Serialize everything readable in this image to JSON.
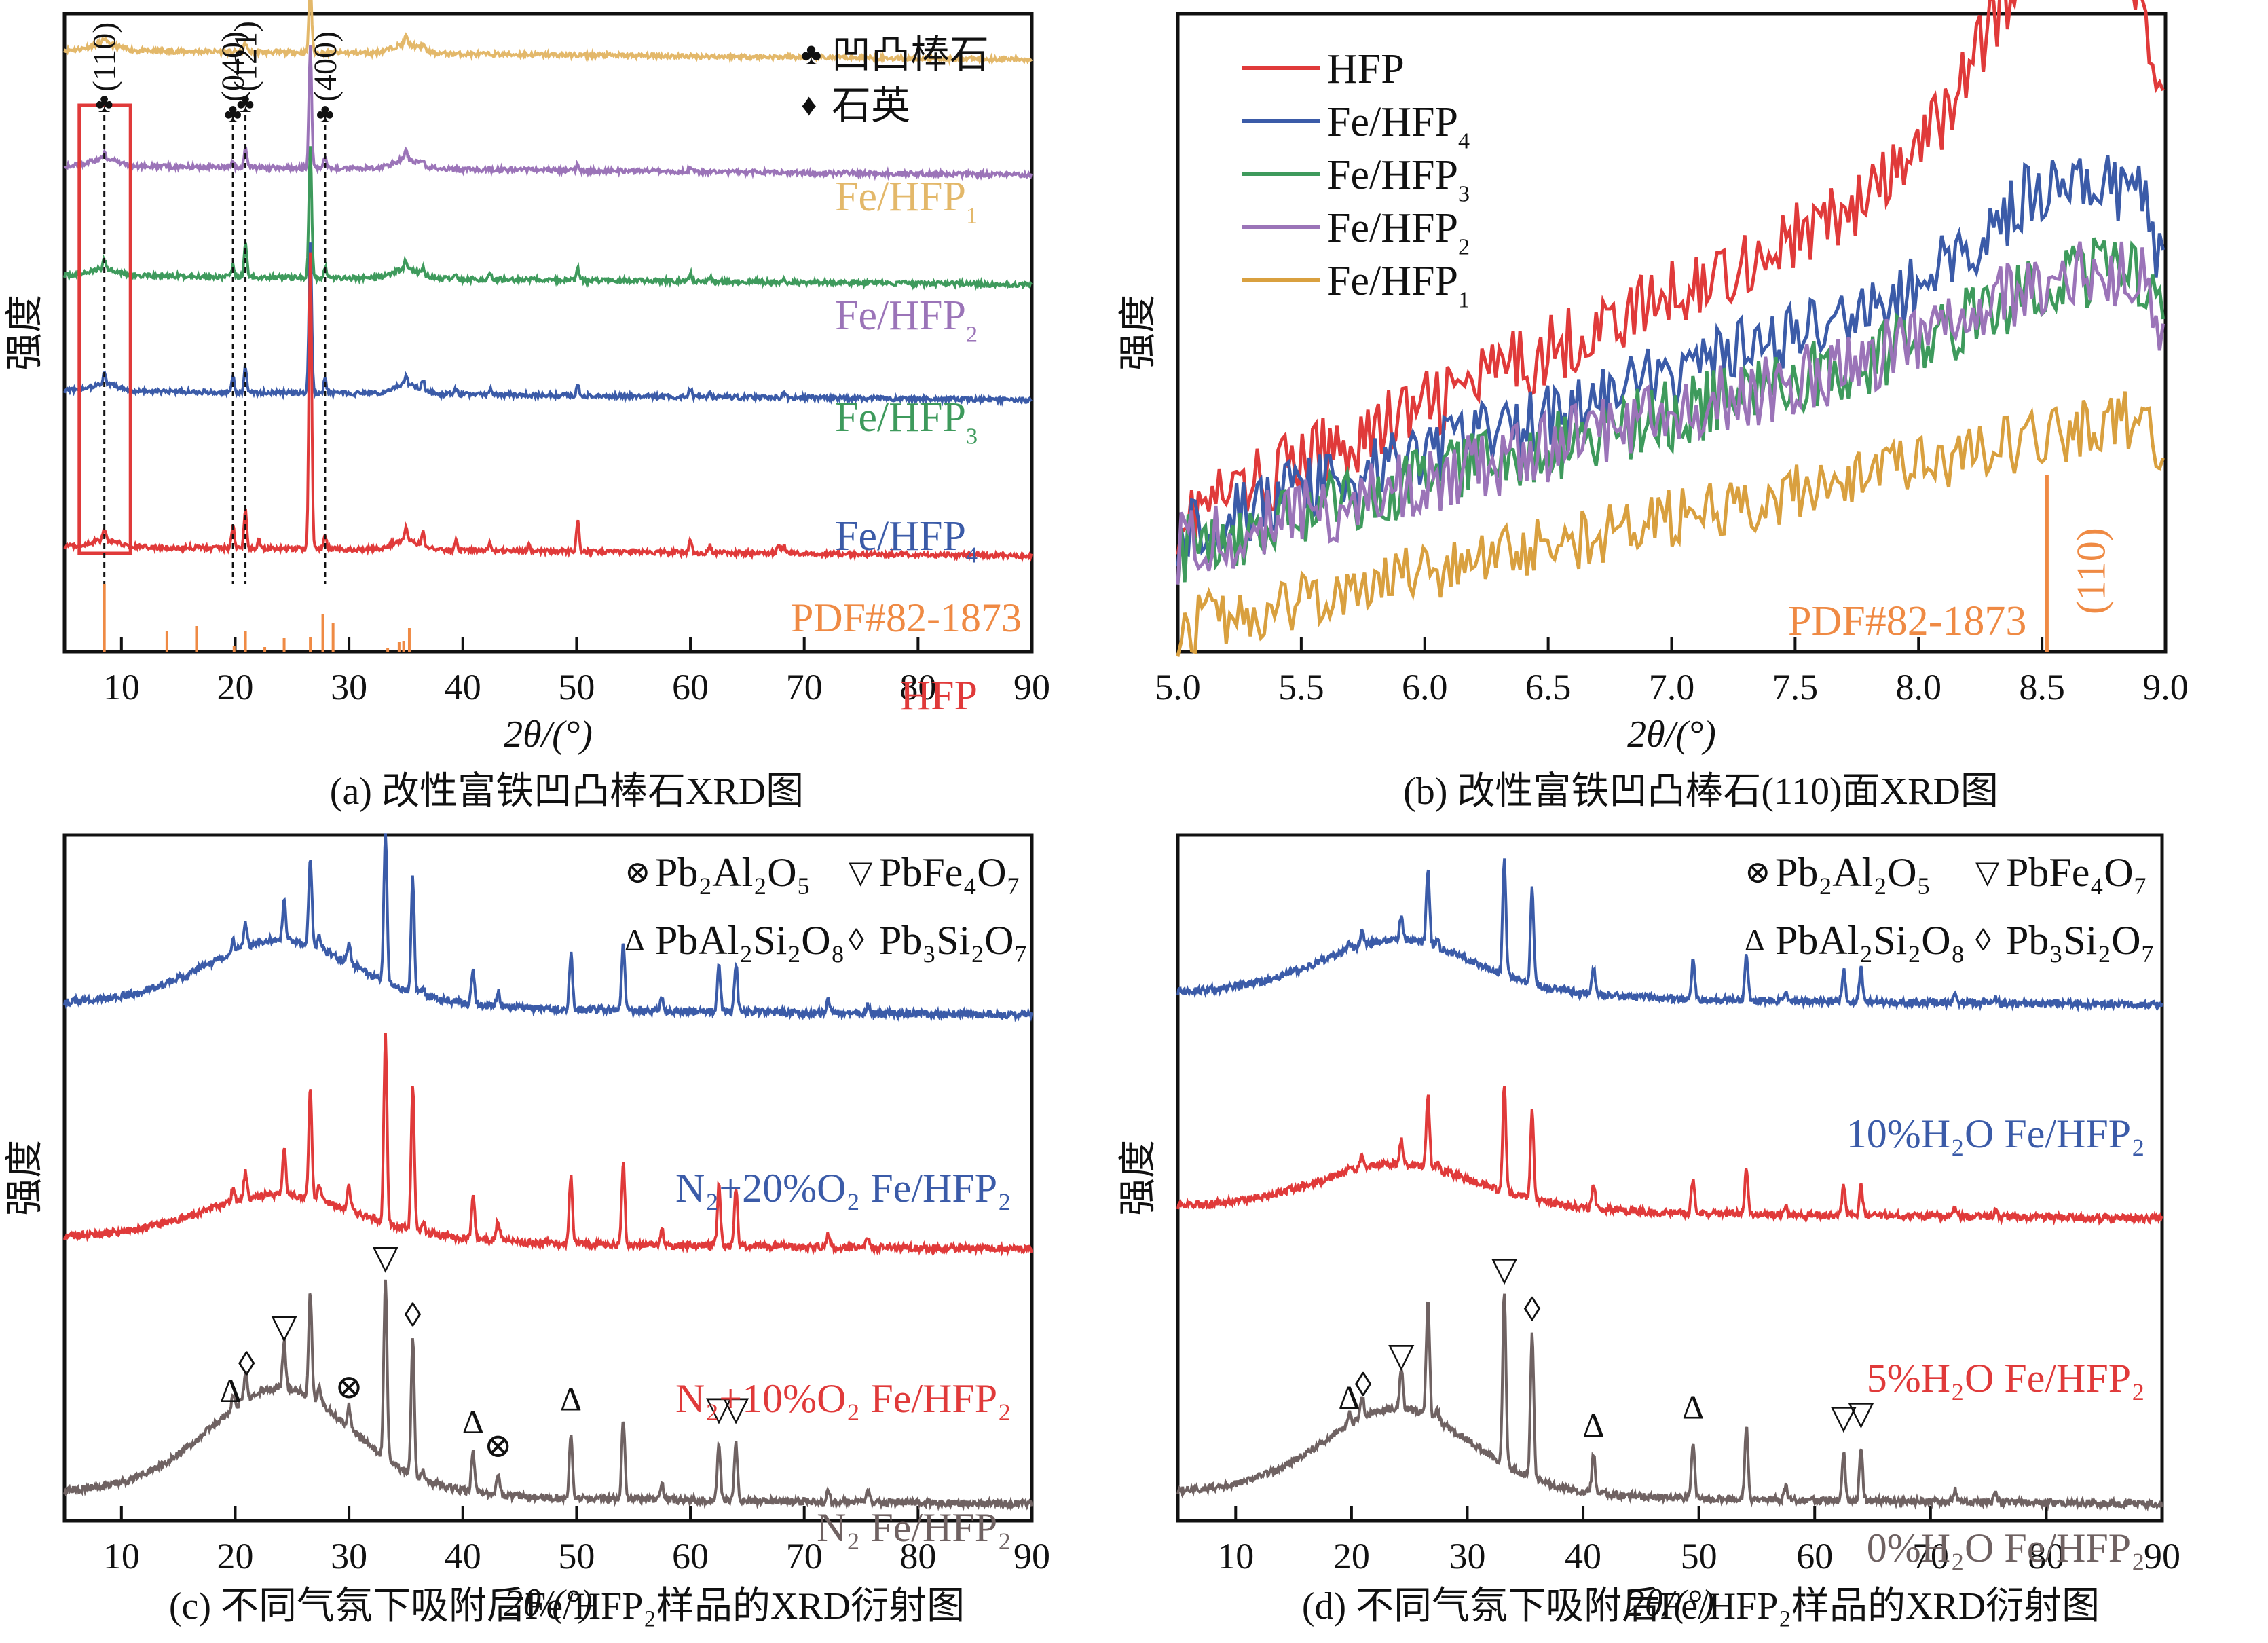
{
  "chart_data": [
    {
      "id": "a",
      "type": "line",
      "caption": "(a) 改性富铁凹凸棒石XRD图",
      "title": "",
      "xlabel": "2θ/(°)",
      "ylabel": "强度",
      "xlim": [
        5,
        90
      ],
      "xticks": [
        10,
        20,
        30,
        40,
        50,
        60,
        70,
        80,
        90
      ],
      "grid": false,
      "legend": {
        "placement": "top-right",
        "entries": [
          {
            "symbol": "♣",
            "label": "凹凸棒石"
          },
          {
            "symbol": "♦",
            "label": "石英"
          }
        ]
      },
      "peak_markers": [
        {
          "x": 8.5,
          "symbol": "♣",
          "label": "(110)"
        },
        {
          "x": 19.8,
          "symbol": "♣",
          "label": "(040)"
        },
        {
          "x": 20.9,
          "symbol": "♣",
          "label": "(121)"
        },
        {
          "x": 27.9,
          "symbol": "♣",
          "label": "(400)"
        }
      ],
      "highlight_box": {
        "x_range": [
          6.3,
          10.8
        ],
        "color": "#e03a3a"
      },
      "series": [
        {
          "name": "Fe/HFP",
          "sub": "1",
          "color": "#e3b86a",
          "offset": 4.3,
          "slope": -0.08,
          "peaks": [
            [
              8.5,
              0.05
            ],
            [
              20.9,
              0.08
            ],
            [
              26.6,
              0.6
            ],
            [
              35,
              0.07
            ],
            [
              36.5,
              0.05
            ]
          ]
        },
        {
          "name": "Fe/HFP",
          "sub": "2",
          "color": "#9b74b8",
          "offset": 3.3,
          "slope": -0.08,
          "peaks": [
            [
              8.5,
              0.06
            ],
            [
              19.8,
              0.06
            ],
            [
              20.9,
              0.17
            ],
            [
              26.6,
              1.05
            ],
            [
              27.9,
              0.1
            ],
            [
              35,
              0.07
            ],
            [
              36.5,
              0.05
            ],
            [
              50.1,
              0.05
            ],
            [
              60,
              0.04
            ]
          ]
        },
        {
          "name": "Fe/HFP",
          "sub": "3",
          "color": "#3e9a5c",
          "offset": 2.35,
          "slope": -0.08,
          "peaks": [
            [
              8.5,
              0.08
            ],
            [
              19.8,
              0.1
            ],
            [
              20.9,
              0.3
            ],
            [
              26.6,
              1.15
            ],
            [
              27.9,
              0.1
            ],
            [
              35,
              0.08
            ],
            [
              36.5,
              0.07
            ],
            [
              39.4,
              0.05
            ],
            [
              42.4,
              0.05
            ],
            [
              50.1,
              0.1
            ],
            [
              60,
              0.07
            ],
            [
              61.7,
              0.04
            ],
            [
              68.2,
              0.04
            ]
          ]
        },
        {
          "name": "Fe/HFP",
          "sub": "4",
          "color": "#3b5ba8",
          "offset": 1.35,
          "slope": -0.08,
          "peaks": [
            [
              8.5,
              0.1
            ],
            [
              19.8,
              0.13
            ],
            [
              20.9,
              0.22
            ],
            [
              26.6,
              1.3
            ],
            [
              27.9,
              0.12
            ],
            [
              35,
              0.09
            ],
            [
              36.5,
              0.09
            ],
            [
              39.4,
              0.05
            ],
            [
              42.4,
              0.05
            ],
            [
              50.1,
              0.1
            ],
            [
              60,
              0.07
            ],
            [
              61.7,
              0.04
            ],
            [
              68.2,
              0.05
            ]
          ]
        },
        {
          "name": "HFP",
          "sub": "",
          "color": "#e03a3a",
          "offset": 0.0,
          "slope": -0.08,
          "peaks": [
            [
              8.5,
              0.1
            ],
            [
              19.8,
              0.2
            ],
            [
              20.9,
              0.33
            ],
            [
              22.1,
              0.07
            ],
            [
              26.6,
              2.55
            ],
            [
              27.9,
              0.12
            ],
            [
              35,
              0.12
            ],
            [
              36.5,
              0.12
            ],
            [
              39.4,
              0.08
            ],
            [
              42.4,
              0.06
            ],
            [
              45.8,
              0.05
            ],
            [
              50.1,
              0.27
            ],
            [
              60,
              0.1
            ],
            [
              61.7,
              0.06
            ],
            [
              67.7,
              0.07
            ],
            [
              68.2,
              0.07
            ]
          ]
        }
      ],
      "reference": {
        "label": "PDF#82-1873",
        "color": "#ef8a44",
        "sticks": [
          [
            8.5,
            1.0
          ],
          [
            14,
            0.3
          ],
          [
            16.6,
            0.38
          ],
          [
            19.9,
            0.08
          ],
          [
            20.9,
            0.3
          ],
          [
            22.6,
            0.07
          ],
          [
            24.3,
            0.2
          ],
          [
            26.6,
            0.22
          ],
          [
            27.7,
            0.55
          ],
          [
            28.6,
            0.42
          ],
          [
            33.4,
            0.05
          ],
          [
            34.4,
            0.15
          ],
          [
            34.8,
            0.16
          ],
          [
            35.3,
            0.35
          ]
        ]
      },
      "curve_labels": [
        {
          "text": "Fe/HFP",
          "sub": "1",
          "color": "#e3b86a"
        },
        {
          "text": "Fe/HFP",
          "sub": "2",
          "color": "#9b74b8"
        },
        {
          "text": "Fe/HFP",
          "sub": "3",
          "color": "#3e9a5c"
        },
        {
          "text": "Fe/HFP",
          "sub": "4",
          "color": "#3b5ba8"
        },
        {
          "text": "HFP",
          "sub": "",
          "color": "#e03a3a"
        }
      ]
    },
    {
      "id": "b",
      "type": "line",
      "caption": "(b) 改性富铁凹凸棒石(110)面XRD图",
      "title": "",
      "xlabel": "2θ/(°)",
      "ylabel": "强度",
      "xlim": [
        5.0,
        9.0
      ],
      "xticks": [
        "5.0",
        "5.5",
        "6.0",
        "6.5",
        "7.0",
        "7.5",
        "8.0",
        "8.5",
        "9.0"
      ],
      "grid": false,
      "legend": {
        "placement": "top-left"
      },
      "series": [
        {
          "name": "HFP",
          "sub": "",
          "color": "#e03a3a",
          "start": 0.2,
          "end": 0.95,
          "bump": 0.3,
          "noise": 0.12
        },
        {
          "name": "Fe/HFP",
          "sub": "4",
          "color": "#3b5ba8",
          "start": 0.18,
          "end": 0.7,
          "bump": 0.12,
          "noise": 0.12
        },
        {
          "name": "Fe/HFP",
          "sub": "3",
          "color": "#3e9a5c",
          "start": 0.15,
          "end": 0.6,
          "bump": 0.05,
          "noise": 0.12
        },
        {
          "name": "Fe/HFP",
          "sub": "2",
          "color": "#9b74b8",
          "start": 0.15,
          "end": 0.6,
          "bump": 0.05,
          "noise": 0.12
        },
        {
          "name": "Fe/HFP",
          "sub": "1",
          "color": "#d9a03f",
          "start": 0.02,
          "end": 0.38,
          "bump": 0.0,
          "noise": 0.1
        }
      ],
      "reference": {
        "label": "PDF#82-1873",
        "hkl": "(110)",
        "color": "#ef8a44",
        "stick_x": 8.52
      }
    },
    {
      "id": "c",
      "type": "line",
      "caption": "(c) 不同气氛下吸附后Fe/HFP₂样品的XRD衍射图",
      "title": "",
      "xlabel": "2θ/(°)",
      "ylabel": "强度",
      "xlim": [
        5,
        90
      ],
      "xticks": [
        10,
        20,
        30,
        40,
        50,
        60,
        70,
        80,
        90
      ],
      "grid": false,
      "legend": {
        "placement": "top-right",
        "entries": [
          {
            "symbol": "⊗",
            "label": "Pb₂Al₂O₅"
          },
          {
            "symbol": "▽",
            "label": "PbFe₄O₇"
          },
          {
            "symbol": "Δ",
            "label": "PbAl₂Si₂O₈"
          },
          {
            "symbol": "◊",
            "label": "Pb₃Si₂O₇"
          }
        ]
      },
      "series": [
        {
          "name": "N₂+20%O₂ Fe/HFP₂",
          "color": "#3b5ba8",
          "offset": 2.4,
          "hump": 0.25,
          "scale": 0.78
        },
        {
          "name": "N₂+10%O₂ Fe/HFP₂",
          "color": "#e03a3a",
          "offset": 1.25,
          "hump": 0.15,
          "scale": 0.97
        },
        {
          "name": "N₂ Fe/HFP₂",
          "color": "#6f6262",
          "offset": 0.0,
          "hump": 0.45,
          "scale": 0.93
        }
      ],
      "peaks": [
        [
          19.8,
          0.07
        ],
        [
          20.9,
          0.14
        ],
        [
          24.3,
          0.25
        ],
        [
          26.6,
          0.55
        ],
        [
          27.4,
          0.08
        ],
        [
          30.0,
          0.12
        ],
        [
          33.2,
          0.95
        ],
        [
          35.6,
          0.72
        ],
        [
          36.5,
          0.05
        ],
        [
          40.9,
          0.22
        ],
        [
          43.1,
          0.1
        ],
        [
          49.5,
          0.35
        ],
        [
          54.1,
          0.42
        ],
        [
          57.5,
          0.08
        ],
        [
          62.5,
          0.3
        ],
        [
          64.0,
          0.3
        ],
        [
          72.1,
          0.07
        ],
        [
          75.6,
          0.05
        ]
      ],
      "markers_on": "N₂ Fe/HFP₂",
      "peak_markers": [
        {
          "x": 19.6,
          "symbol": "Δ"
        },
        {
          "x": 21.0,
          "symbol": "◊"
        },
        {
          "x": 24.3,
          "symbol": "▽"
        },
        {
          "x": 30.0,
          "symbol": "⊗"
        },
        {
          "x": 33.2,
          "symbol": "▽"
        },
        {
          "x": 35.6,
          "symbol": "◊"
        },
        {
          "x": 40.9,
          "symbol": "Δ"
        },
        {
          "x": 43.1,
          "symbol": "⊗"
        },
        {
          "x": 49.5,
          "symbol": "Δ"
        },
        {
          "x": 62.5,
          "symbol": "▽"
        },
        {
          "x": 64.0,
          "symbol": "▽"
        }
      ]
    },
    {
      "id": "d",
      "type": "line",
      "caption": "(d) 不同气氛下吸附后Fe/HFP₂样品的XRD衍射图",
      "title": "",
      "xlabel": "2θ/(°)",
      "ylabel": "强度",
      "xlim": [
        5,
        90
      ],
      "xticks": [
        10,
        20,
        30,
        40,
        50,
        60,
        70,
        80,
        90
      ],
      "grid": false,
      "legend": {
        "placement": "top-right",
        "entries": [
          {
            "symbol": "⊗",
            "label": "Pb₂Al₂O₅"
          },
          {
            "symbol": "▽",
            "label": "PbFe₄O₇"
          },
          {
            "symbol": "Δ",
            "label": "PbAl₂Si₂O₈"
          },
          {
            "symbol": "◊",
            "label": "Pb₃Si₂O₇"
          }
        ]
      },
      "series": [
        {
          "name": "10%H₂O Fe/HFP₂",
          "color": "#3b5ba8",
          "offset": 2.45,
          "hump": 0.2,
          "scale": 0.62
        },
        {
          "name": "5%H₂O Fe/HFP₂",
          "color": "#e03a3a",
          "offset": 1.4,
          "hump": 0.15,
          "scale": 0.58
        },
        {
          "name": "0%H₂O Fe/HFP₂",
          "color": "#6f6262",
          "offset": 0.0,
          "hump": 0.35,
          "scale": 0.95
        }
      ],
      "peaks": [
        [
          19.8,
          0.06
        ],
        [
          20.9,
          0.12
        ],
        [
          24.3,
          0.2
        ],
        [
          26.6,
          0.6
        ],
        [
          27.4,
          0.06
        ],
        [
          33.2,
          0.9
        ],
        [
          35.6,
          0.75
        ],
        [
          40.9,
          0.2
        ],
        [
          49.5,
          0.3
        ],
        [
          54.1,
          0.38
        ],
        [
          57.5,
          0.07
        ],
        [
          62.5,
          0.25
        ],
        [
          64.0,
          0.27
        ],
        [
          72.1,
          0.06
        ],
        [
          75.6,
          0.04
        ]
      ],
      "markers_on": "0%H₂O Fe/HFP₂",
      "peak_markers": [
        {
          "x": 19.8,
          "symbol": "Δ"
        },
        {
          "x": 21.0,
          "symbol": "◊"
        },
        {
          "x": 24.3,
          "symbol": "▽"
        },
        {
          "x": 33.2,
          "symbol": "▽"
        },
        {
          "x": 35.6,
          "symbol": "◊"
        },
        {
          "x": 40.9,
          "symbol": "Δ"
        },
        {
          "x": 49.5,
          "symbol": "Δ"
        },
        {
          "x": 62.5,
          "symbol": "▽"
        },
        {
          "x": 64.0,
          "symbol": "▽"
        }
      ]
    }
  ]
}
